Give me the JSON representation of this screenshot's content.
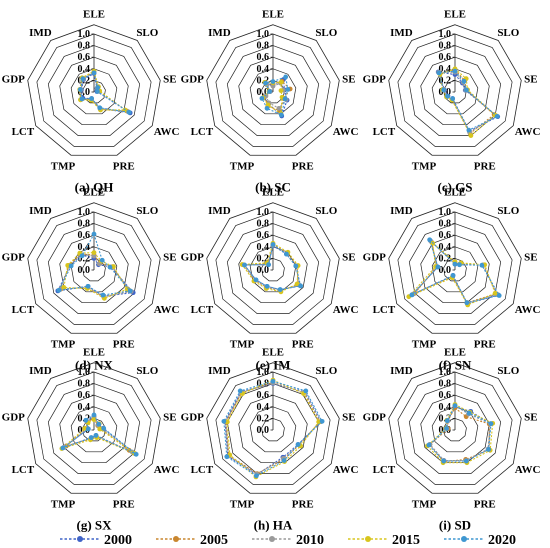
{
  "figure": {
    "axes": [
      "ELE",
      "SLO",
      "SE",
      "AWC",
      "PRE",
      "TMP",
      "LCT",
      "GDP",
      "IMD"
    ],
    "ticks": [
      "0.0",
      "0.2",
      "0.4",
      "0.6",
      "0.8",
      "1.0"
    ],
    "legend": {
      "placement": "bottom-center",
      "entries": [
        "2000",
        "2005",
        "2010",
        "2015",
        "2020"
      ]
    },
    "series_colors": {
      "2000": "#3f63c7",
      "2005": "#c9862e",
      "2010": "#9a9a9a",
      "2015": "#d8c51e",
      "2020": "#3f97d1"
    },
    "grid_color": "#222222"
  },
  "chart_data": [
    {
      "type": "radar",
      "title": "(a) QH",
      "categories": [
        "ELE",
        "SLO",
        "SE",
        "AWC",
        "PRE",
        "TMP",
        "LCT",
        "GDP",
        "IMD"
      ],
      "rlim": [
        0,
        1
      ],
      "series": [
        {
          "name": "2000",
          "values": [
            0.32,
            0.08,
            0.05,
            0.72,
            0.3,
            0.12,
            0.22,
            0.22,
            0.28
          ]
        },
        {
          "name": "2005",
          "values": [
            0.35,
            0.1,
            0.08,
            0.66,
            0.32,
            0.14,
            0.26,
            0.24,
            0.3
          ]
        },
        {
          "name": "2010",
          "values": [
            0.34,
            0.09,
            0.07,
            0.68,
            0.31,
            0.13,
            0.25,
            0.23,
            0.29
          ]
        },
        {
          "name": "2015",
          "values": [
            0.36,
            0.12,
            0.1,
            0.62,
            0.33,
            0.15,
            0.27,
            0.25,
            0.32
          ]
        },
        {
          "name": "2020",
          "values": [
            0.33,
            0.1,
            0.06,
            0.7,
            0.29,
            0.12,
            0.24,
            0.24,
            0.3
          ]
        }
      ]
    },
    {
      "type": "radar",
      "title": "(b) SC",
      "categories": [
        "ELE",
        "SLO",
        "SE",
        "AWC",
        "PRE",
        "TMP",
        "LCT",
        "GDP",
        "IMD"
      ],
      "rlim": [
        0,
        1
      ],
      "series": [
        {
          "name": "2000",
          "values": [
            0.12,
            0.28,
            0.2,
            0.28,
            0.44,
            0.22,
            0.18,
            0.05,
            0.2
          ]
        },
        {
          "name": "2005",
          "values": [
            0.14,
            0.24,
            0.3,
            0.22,
            0.34,
            0.26,
            0.16,
            0.06,
            0.18
          ]
        },
        {
          "name": "2010",
          "values": [
            0.1,
            0.2,
            0.18,
            0.26,
            0.3,
            0.2,
            0.14,
            0.05,
            0.16
          ]
        },
        {
          "name": "2015",
          "values": [
            0.16,
            0.22,
            0.14,
            0.18,
            0.4,
            0.24,
            0.2,
            0.07,
            0.22
          ]
        },
        {
          "name": "2020",
          "values": [
            0.18,
            0.34,
            0.26,
            0.24,
            0.42,
            0.3,
            0.22,
            0.06,
            0.2
          ]
        }
      ]
    },
    {
      "type": "radar",
      "title": "(c) GS",
      "categories": [
        "ELE",
        "SLO",
        "SE",
        "AWC",
        "PRE",
        "TMP",
        "LCT",
        "GDP",
        "IMD"
      ],
      "rlim": [
        0,
        1
      ],
      "series": [
        {
          "name": "2000",
          "values": [
            0.3,
            0.2,
            0.18,
            0.85,
            0.72,
            0.12,
            0.14,
            0.18,
            0.45
          ]
        },
        {
          "name": "2005",
          "values": [
            0.38,
            0.26,
            0.2,
            0.78,
            0.76,
            0.14,
            0.16,
            0.2,
            0.42
          ]
        },
        {
          "name": "2010",
          "values": [
            0.34,
            0.22,
            0.19,
            0.82,
            0.74,
            0.13,
            0.15,
            0.19,
            0.44
          ]
        },
        {
          "name": "2015",
          "values": [
            0.4,
            0.3,
            0.22,
            0.8,
            0.8,
            0.15,
            0.17,
            0.22,
            0.4
          ]
        },
        {
          "name": "2020",
          "values": [
            0.36,
            0.24,
            0.2,
            0.84,
            0.7,
            0.12,
            0.15,
            0.2,
            0.43
          ]
        }
      ]
    },
    {
      "type": "radar",
      "title": "(d) NX",
      "categories": [
        "ELE",
        "SLO",
        "SE",
        "AWC",
        "PRE",
        "TMP",
        "LCT",
        "GDP",
        "IMD"
      ],
      "rlim": [
        0,
        1
      ],
      "series": [
        {
          "name": "2000",
          "values": [
            0.2,
            0.12,
            0.3,
            0.78,
            0.48,
            0.3,
            0.72,
            0.42,
            0.34
          ]
        },
        {
          "name": "2005",
          "values": [
            0.26,
            0.16,
            0.32,
            0.7,
            0.5,
            0.32,
            0.66,
            0.44,
            0.36
          ]
        },
        {
          "name": "2010",
          "values": [
            0.24,
            0.14,
            0.31,
            0.74,
            0.49,
            0.31,
            0.68,
            0.43,
            0.35
          ]
        },
        {
          "name": "2015",
          "values": [
            0.3,
            0.2,
            0.34,
            0.66,
            0.52,
            0.34,
            0.6,
            0.46,
            0.38
          ]
        },
        {
          "name": "2020",
          "values": [
            0.62,
            0.22,
            0.28,
            0.72,
            0.46,
            0.3,
            0.7,
            0.4,
            0.32
          ]
        }
      ]
    },
    {
      "type": "radar",
      "title": "(e) IM",
      "categories": [
        "ELE",
        "SLO",
        "SE",
        "AWC",
        "PRE",
        "TMP",
        "LCT",
        "GDP",
        "IMD"
      ],
      "rlim": [
        0,
        1
      ],
      "series": [
        {
          "name": "2000",
          "values": [
            0.42,
            0.36,
            0.4,
            0.54,
            0.36,
            0.3,
            0.34,
            0.5,
            0.12
          ]
        },
        {
          "name": "2005",
          "values": [
            0.44,
            0.38,
            0.42,
            0.5,
            0.38,
            0.32,
            0.36,
            0.52,
            0.14
          ]
        },
        {
          "name": "2010",
          "values": [
            0.43,
            0.37,
            0.41,
            0.52,
            0.37,
            0.31,
            0.35,
            0.51,
            0.13
          ]
        },
        {
          "name": "2015",
          "values": [
            0.46,
            0.4,
            0.44,
            0.48,
            0.4,
            0.34,
            0.38,
            0.54,
            0.16
          ]
        },
        {
          "name": "2020",
          "values": [
            0.44,
            0.36,
            0.4,
            0.55,
            0.36,
            0.3,
            0.34,
            0.5,
            0.12
          ]
        }
      ]
    },
    {
      "type": "radar",
      "title": "(f) SN",
      "categories": [
        "ELE",
        "SLO",
        "SE",
        "AWC",
        "PRE",
        "TMP",
        "LCT",
        "GDP",
        "IMD"
      ],
      "rlim": [
        0,
        1
      ],
      "series": [
        {
          "name": "2000",
          "values": [
            0.1,
            0.12,
            0.48,
            0.86,
            0.62,
            0.1,
            0.85,
            0.3,
            0.66
          ]
        },
        {
          "name": "2005",
          "values": [
            0.12,
            0.14,
            0.5,
            0.82,
            0.6,
            0.12,
            0.8,
            0.32,
            0.62
          ]
        },
        {
          "name": "2010",
          "values": [
            0.11,
            0.13,
            0.49,
            0.84,
            0.61,
            0.11,
            0.82,
            0.31,
            0.64
          ]
        },
        {
          "name": "2015",
          "values": [
            0.14,
            0.16,
            0.52,
            0.8,
            0.64,
            0.14,
            0.92,
            0.34,
            0.6
          ]
        },
        {
          "name": "2020",
          "values": [
            0.1,
            0.12,
            0.47,
            0.88,
            0.6,
            0.1,
            0.86,
            0.3,
            0.68
          ]
        }
      ]
    },
    {
      "type": "radar",
      "title": "(g) SX",
      "categories": [
        "ELE",
        "SLO",
        "SE",
        "AWC",
        "PRE",
        "TMP",
        "LCT",
        "GDP",
        "IMD"
      ],
      "rlim": [
        0,
        1
      ],
      "series": [
        {
          "name": "2000",
          "values": [
            0.24,
            0.12,
            0.16,
            0.82,
            0.1,
            0.14,
            0.6,
            0.1,
            0.2
          ]
        },
        {
          "name": "2005",
          "values": [
            0.2,
            0.1,
            0.12,
            0.7,
            0.12,
            0.16,
            0.55,
            0.14,
            0.18
          ]
        },
        {
          "name": "2010",
          "values": [
            0.22,
            0.11,
            0.14,
            0.76,
            0.11,
            0.15,
            0.58,
            0.12,
            0.19
          ]
        },
        {
          "name": "2015",
          "values": [
            0.18,
            0.14,
            0.1,
            0.8,
            0.14,
            0.18,
            0.64,
            0.16,
            0.16
          ]
        },
        {
          "name": "2020",
          "values": [
            0.26,
            0.13,
            0.17,
            0.84,
            0.1,
            0.14,
            0.62,
            0.1,
            0.22
          ]
        }
      ]
    },
    {
      "type": "radar",
      "title": "(h) HA",
      "categories": [
        "ELE",
        "SLO",
        "SE",
        "AWC",
        "PRE",
        "TMP",
        "LCT",
        "GDP",
        "IMD"
      ],
      "rlim": [
        0,
        1
      ],
      "series": [
        {
          "name": "2000",
          "values": [
            0.8,
            0.86,
            0.84,
            0.5,
            0.5,
            0.82,
            0.9,
            0.84,
            0.86
          ]
        },
        {
          "name": "2005",
          "values": [
            0.82,
            0.84,
            0.82,
            0.52,
            0.54,
            0.8,
            0.88,
            0.82,
            0.84
          ]
        },
        {
          "name": "2010",
          "values": [
            0.81,
            0.85,
            0.83,
            0.51,
            0.52,
            0.81,
            0.89,
            0.83,
            0.85
          ]
        },
        {
          "name": "2015",
          "values": [
            0.86,
            0.82,
            0.8,
            0.55,
            0.58,
            0.86,
            0.86,
            0.8,
            0.82
          ]
        },
        {
          "name": "2020",
          "values": [
            0.84,
            0.88,
            0.86,
            0.5,
            0.56,
            0.84,
            0.92,
            0.86,
            0.88
          ]
        }
      ]
    },
    {
      "type": "radar",
      "title": "(i) SD",
      "categories": [
        "ELE",
        "SLO",
        "SE",
        "AWC",
        "PRE",
        "TMP",
        "LCT",
        "GDP",
        "IMD"
      ],
      "rlim": [
        0,
        1
      ],
      "series": [
        {
          "name": "2000",
          "values": [
            0.4,
            0.42,
            0.62,
            0.66,
            0.56,
            0.56,
            0.5,
            0.14,
            0.2
          ]
        },
        {
          "name": "2005",
          "values": [
            0.38,
            0.3,
            0.6,
            0.68,
            0.54,
            0.58,
            0.5,
            0.12,
            0.2
          ]
        },
        {
          "name": "2010",
          "values": [
            0.42,
            0.36,
            0.62,
            0.66,
            0.56,
            0.56,
            0.5,
            0.14,
            0.2
          ]
        },
        {
          "name": "2015",
          "values": [
            0.44,
            0.4,
            0.66,
            0.7,
            0.6,
            0.6,
            0.55,
            0.16,
            0.22
          ]
        },
        {
          "name": "2020",
          "values": [
            0.42,
            0.38,
            0.63,
            0.67,
            0.57,
            0.57,
            0.52,
            0.15,
            0.21
          ]
        }
      ]
    }
  ]
}
